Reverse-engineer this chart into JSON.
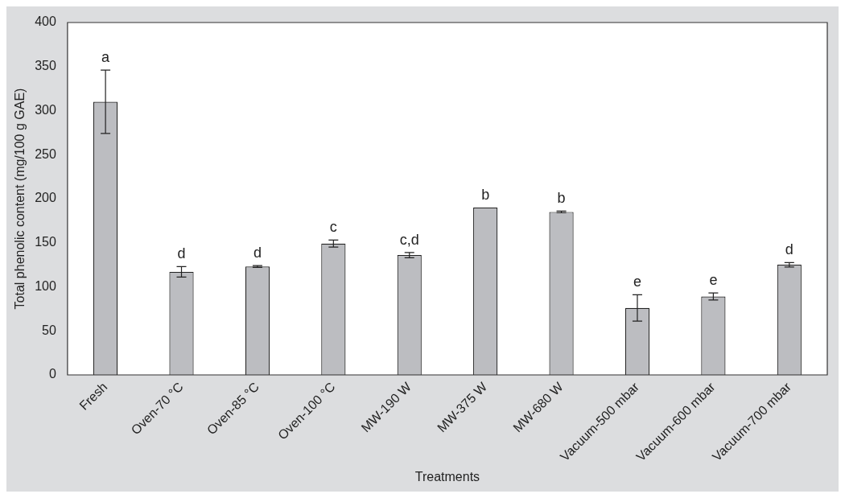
{
  "chart_data": {
    "type": "bar",
    "xlabel": "Treatments",
    "ylabel": "Total phenolic content (mg/100 g GAE)",
    "categories": [
      "Fresh",
      "Oven-70 °C",
      "Oven-85 °C",
      "Oven-100 °C",
      "MW-190 W",
      "MW-375 W",
      "MW-680 W",
      "Vacuum-500 mbar",
      "Vacuum-600 mbar",
      "Vacuum-700 mbar"
    ],
    "values": [
      310,
      117,
      123,
      149,
      136,
      190,
      185,
      76,
      89,
      125
    ],
    "errors": [
      36,
      6,
      1,
      4,
      3,
      null,
      1,
      15,
      4,
      2.5
    ],
    "color": "#bcbdc1",
    "ylim": [
      0,
      400
    ],
    "yticks": [
      0,
      50,
      100,
      150,
      200,
      250,
      300,
      350,
      400
    ],
    "grid": false,
    "legend": false,
    "annotations": [
      {
        "text": "a",
        "x": "Fresh",
        "y": 346
      },
      {
        "text": "d",
        "x": "Oven-70 °C",
        "y": 123
      },
      {
        "text": "d",
        "x": "Oven-85 °C",
        "y": 124
      },
      {
        "text": "c",
        "x": "Oven-100 °C",
        "y": 153
      },
      {
        "text": "c,d",
        "x": "MW-190 W",
        "y": 139
      },
      {
        "text": "b",
        "x": "MW-375 W",
        "y": 190
      },
      {
        "text": "b",
        "x": "MW-680 W",
        "y": 186
      },
      {
        "text": "e",
        "x": "Vacuum-500 mbar",
        "y": 91
      },
      {
        "text": "e",
        "x": "Vacuum-600 mbar",
        "y": 93
      },
      {
        "text": "d",
        "x": "Vacuum-700 mbar",
        "y": 127.5
      }
    ]
  }
}
